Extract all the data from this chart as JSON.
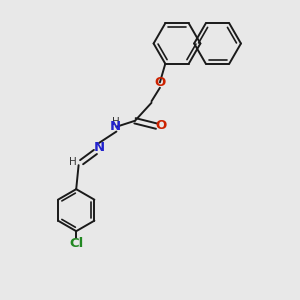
{
  "bg_color": "#e8e8e8",
  "bond_color": "#1a1a1a",
  "n_color": "#2222cc",
  "o_color": "#cc2200",
  "cl_color": "#228822",
  "lw": 1.4,
  "lw_inner": 1.2,
  "fig_size": [
    3.0,
    3.0
  ],
  "dpi": 100,
  "xlim": [
    0,
    10
  ],
  "ylim": [
    0,
    10
  ],
  "nap_r": 0.78,
  "benz_r": 0.7
}
